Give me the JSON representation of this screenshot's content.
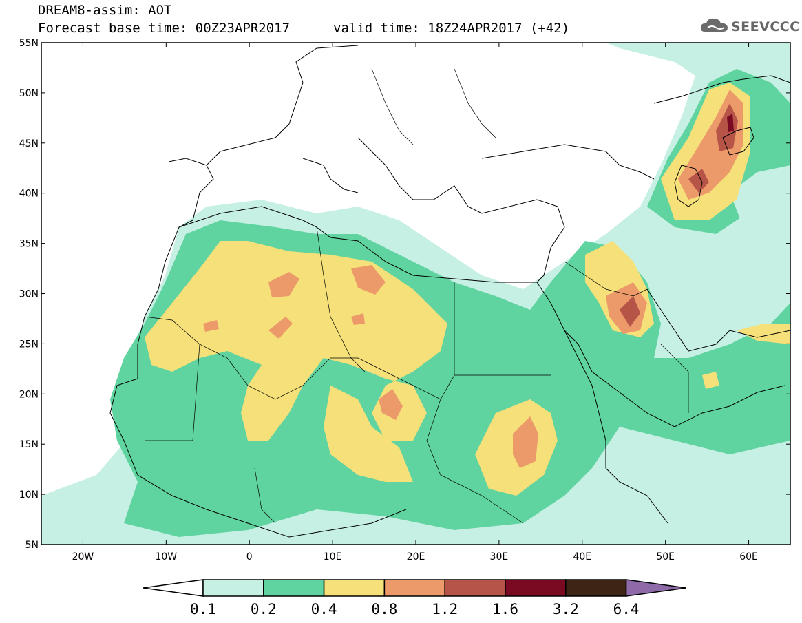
{
  "header": {
    "line1": "DREAM8-assim: AOT",
    "line2": "Forecast base time: 00Z23APR2017",
    "line3": "valid time: 18Z24APR2017 (+42)"
  },
  "logo": {
    "text": "SEEVCCC",
    "icon": "cloud-icon"
  },
  "map": {
    "lat_labels": [
      "55N",
      "50N",
      "45N",
      "40N",
      "35N",
      "30N",
      "25N",
      "20N",
      "15N",
      "10N",
      "5N"
    ],
    "lon_labels": [
      "20W",
      "10W",
      "0",
      "10E",
      "20E",
      "30E",
      "40E",
      "50E",
      "60E"
    ],
    "lat_range": [
      5,
      55
    ],
    "lon_range": [
      -25,
      65
    ]
  },
  "colorbar": {
    "levels": [
      "0.1",
      "0.2",
      "0.4",
      "0.8",
      "1.2",
      "1.6",
      "3.2",
      "6.4"
    ],
    "colors": [
      "#c7f0e4",
      "#5fd3a0",
      "#f5e07a",
      "#ec9a6a",
      "#b65448",
      "#7a0a22",
      "#3d2414",
      "#8e6aa8"
    ],
    "under_color": "#ffffff"
  }
}
